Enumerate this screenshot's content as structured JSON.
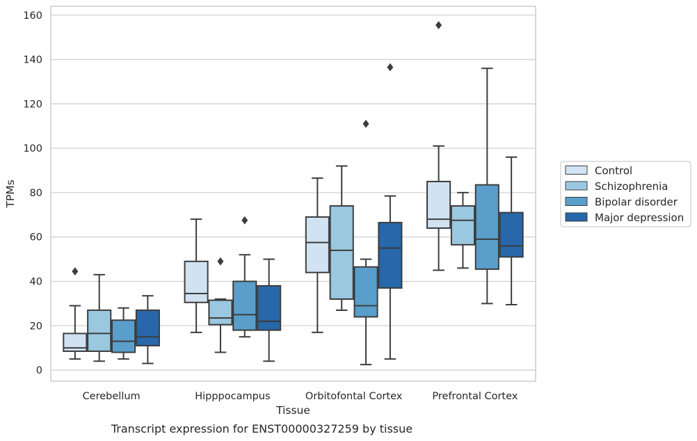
{
  "chart_data": {
    "type": "box",
    "xlabel": "Tissue",
    "ylabel": "TPMs",
    "ylim": [
      -5,
      164
    ],
    "yticks": [
      0,
      20,
      40,
      60,
      80,
      100,
      120,
      140,
      160
    ],
    "grid": "horizontal",
    "legend_position": "right",
    "caption": "Transcript expression for ENST00000327259 by tissue",
    "categories": [
      "Cerebellum",
      "Hipppocampus",
      "Orbitofontal Cortex",
      "Prefrontal Cortex"
    ],
    "series": [
      {
        "name": "Control",
        "color": "#d1e2f2",
        "boxes": [
          {
            "whislo": 5,
            "q1": 8.5,
            "med": 10,
            "q3": 16.5,
            "whishi": 29,
            "fliers": [
              44.5
            ]
          },
          {
            "whislo": 17,
            "q1": 30.5,
            "med": 34.5,
            "q3": 49,
            "whishi": 68,
            "fliers": []
          },
          {
            "whislo": 17,
            "q1": 44,
            "med": 57.5,
            "q3": 69,
            "whishi": 86.5,
            "fliers": []
          },
          {
            "whislo": 45,
            "q1": 64,
            "med": 68,
            "q3": 85,
            "whishi": 101,
            "fliers": [
              155.5
            ]
          }
        ]
      },
      {
        "name": "Schizophrenia",
        "color": "#9ac8e0",
        "boxes": [
          {
            "whislo": 4,
            "q1": 8.5,
            "med": 16.5,
            "q3": 27,
            "whishi": 43,
            "fliers": []
          },
          {
            "whislo": 8,
            "q1": 20.5,
            "med": 23.5,
            "q3": 31.5,
            "whishi": 32,
            "fliers": [
              49
            ]
          },
          {
            "whislo": 27,
            "q1": 32,
            "med": 54,
            "q3": 74,
            "whishi": 92,
            "fliers": []
          },
          {
            "whislo": 46,
            "q1": 56.5,
            "med": 67.5,
            "q3": 74,
            "whishi": 80,
            "fliers": []
          }
        ]
      },
      {
        "name": "Bipolar disorder",
        "color": "#5a9fcc",
        "boxes": [
          {
            "whislo": 5,
            "q1": 8,
            "med": 13,
            "q3": 22.5,
            "whishi": 28,
            "fliers": []
          },
          {
            "whislo": 15,
            "q1": 18,
            "med": 25,
            "q3": 40,
            "whishi": 52,
            "fliers": [
              67.5
            ]
          },
          {
            "whislo": 2.5,
            "q1": 24,
            "med": 29,
            "q3": 46.5,
            "whishi": 50,
            "fliers": [
              111
            ]
          },
          {
            "whislo": 30,
            "q1": 45.5,
            "med": 59,
            "q3": 83.5,
            "whishi": 136,
            "fliers": []
          }
        ]
      },
      {
        "name": "Major depression",
        "color": "#2767aa",
        "boxes": [
          {
            "whislo": 3,
            "q1": 11,
            "med": 15,
            "q3": 27,
            "whishi": 33.5,
            "fliers": []
          },
          {
            "whislo": 4,
            "q1": 18,
            "med": 22,
            "q3": 38,
            "whishi": 50,
            "fliers": []
          },
          {
            "whislo": 5,
            "q1": 37,
            "med": 55,
            "q3": 66.5,
            "whishi": 78.5,
            "fliers": [
              136.5
            ]
          },
          {
            "whislo": 29.5,
            "q1": 51,
            "med": 56,
            "q3": 71,
            "whishi": 96,
            "fliers": []
          }
        ]
      }
    ]
  }
}
